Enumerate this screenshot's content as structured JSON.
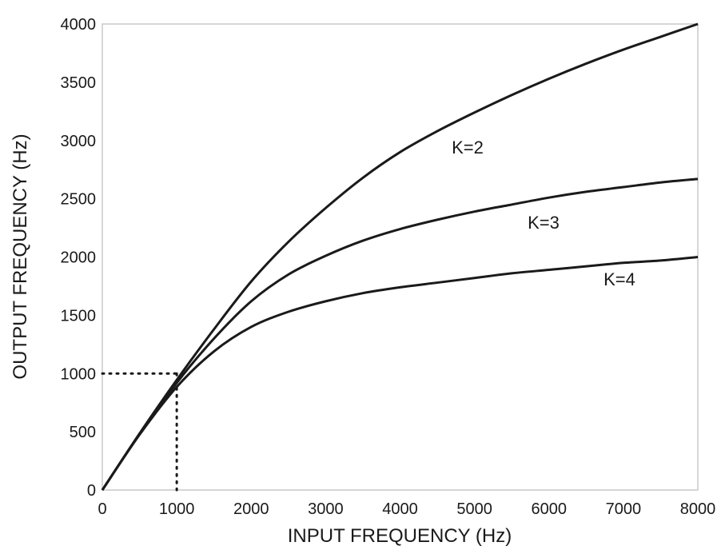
{
  "chart_data": {
    "type": "line",
    "xlabel": "INPUT FREQUENCY (Hz)",
    "ylabel": "OUTPUT FREQUENCY (Hz)",
    "xlim": [
      0,
      8000
    ],
    "ylim": [
      0,
      4000
    ],
    "xticks": [
      0,
      1000,
      2000,
      3000,
      4000,
      5000,
      6000,
      7000,
      8000
    ],
    "yticks": [
      0,
      500,
      1000,
      1500,
      2000,
      2500,
      3000,
      3500,
      4000
    ],
    "grid": false,
    "series": [
      {
        "name": "K=2",
        "x": [
          0,
          500,
          1000,
          1500,
          2000,
          2500,
          3000,
          3500,
          4000,
          4500,
          5000,
          5500,
          6000,
          6500,
          7000,
          7500,
          8000
        ],
        "y": [
          0,
          485,
          945,
          1380,
          1790,
          2130,
          2420,
          2680,
          2900,
          3080,
          3240,
          3390,
          3530,
          3660,
          3780,
          3890,
          4000
        ]
      },
      {
        "name": "K=3",
        "x": [
          0,
          500,
          1000,
          1500,
          2000,
          2500,
          3000,
          3500,
          4000,
          4500,
          5000,
          5500,
          6000,
          6500,
          7000,
          7500,
          8000
        ],
        "y": [
          0,
          480,
          920,
          1300,
          1620,
          1850,
          2010,
          2140,
          2240,
          2320,
          2390,
          2450,
          2510,
          2560,
          2600,
          2640,
          2670
        ]
      },
      {
        "name": "K=4",
        "x": [
          0,
          500,
          1000,
          1500,
          2000,
          2500,
          3000,
          3500,
          4000,
          4500,
          5000,
          5500,
          6000,
          6500,
          7000,
          7500,
          8000
        ],
        "y": [
          0,
          475,
          885,
          1190,
          1400,
          1530,
          1620,
          1690,
          1740,
          1780,
          1820,
          1860,
          1890,
          1920,
          1950,
          1970,
          2000
        ]
      }
    ],
    "reference_point": {
      "x": 1000,
      "y": 1000
    }
  }
}
